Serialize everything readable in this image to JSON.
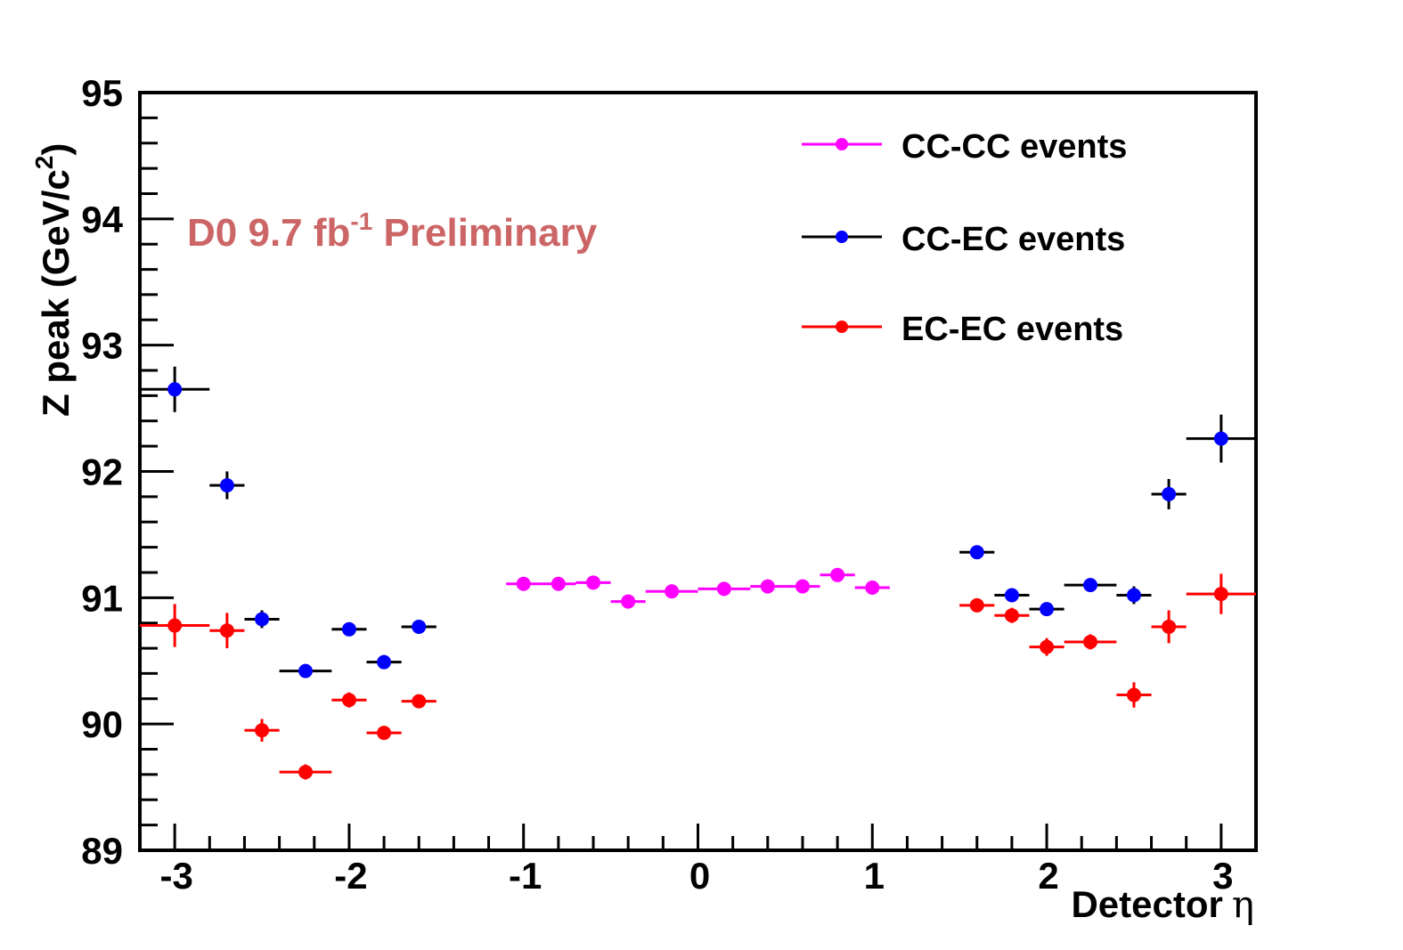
{
  "chart_data": {
    "type": "scatter",
    "title": "",
    "xlabel": {
      "text": "Detector",
      "symbol": "η"
    },
    "ylabel": {
      "text": "Z peak (GeV/c",
      "sup": "2",
      "close": ")"
    },
    "xlim": [
      -3.2,
      3.2
    ],
    "ylim": [
      89,
      95
    ],
    "xticks": [
      -3,
      -2,
      -1,
      0,
      1,
      2,
      3
    ],
    "xtick_labels": [
      "-3",
      "-2",
      "-1",
      "0",
      "1",
      "2",
      "3"
    ],
    "yticks": [
      89,
      90,
      91,
      92,
      93,
      94,
      95
    ],
    "ytick_labels": [
      "89",
      "90",
      "91",
      "92",
      "93",
      "94",
      "95"
    ],
    "grid": false,
    "legend_position": "top-right",
    "annotation": {
      "main": "D0 9.7 fb",
      "sup": "-1",
      "rest": " Preliminary",
      "color": "#cc6666"
    },
    "series": [
      {
        "name": "CC-CC events",
        "color": "#ff00ff",
        "points": [
          {
            "x": -1.0,
            "y": 91.11,
            "xerr": 0.1,
            "yerr": 0.03
          },
          {
            "x": -0.8,
            "y": 91.11,
            "xerr": 0.1,
            "yerr": 0.03
          },
          {
            "x": -0.6,
            "y": 91.12,
            "xerr": 0.1,
            "yerr": 0.03
          },
          {
            "x": -0.4,
            "y": 90.97,
            "xerr": 0.1,
            "yerr": 0.03
          },
          {
            "x": -0.15,
            "y": 91.05,
            "xerr": 0.15,
            "yerr": 0.03
          },
          {
            "x": 0.15,
            "y": 91.07,
            "xerr": 0.15,
            "yerr": 0.03
          },
          {
            "x": 0.4,
            "y": 91.09,
            "xerr": 0.1,
            "yerr": 0.03
          },
          {
            "x": 0.6,
            "y": 91.09,
            "xerr": 0.1,
            "yerr": 0.03
          },
          {
            "x": 0.8,
            "y": 91.18,
            "xerr": 0.1,
            "yerr": 0.03
          },
          {
            "x": 1.0,
            "y": 91.08,
            "xerr": 0.1,
            "yerr": 0.03
          }
        ]
      },
      {
        "name": "CC-EC events",
        "color": "#0000ff",
        "line_color": "#000000",
        "points": [
          {
            "x": -3.0,
            "y": 92.65,
            "xerr": 0.2,
            "yerr": 0.18
          },
          {
            "x": -2.7,
            "y": 91.89,
            "xerr": 0.1,
            "yerr": 0.11
          },
          {
            "x": -2.5,
            "y": 90.83,
            "xerr": 0.1,
            "yerr": 0.07
          },
          {
            "x": -2.25,
            "y": 90.42,
            "xerr": 0.15,
            "yerr": 0.04
          },
          {
            "x": -2.0,
            "y": 90.75,
            "xerr": 0.1,
            "yerr": 0.04
          },
          {
            "x": -1.8,
            "y": 90.49,
            "xerr": 0.1,
            "yerr": 0.04
          },
          {
            "x": -1.6,
            "y": 90.77,
            "xerr": 0.1,
            "yerr": 0.04
          },
          {
            "x": 1.6,
            "y": 91.36,
            "xerr": 0.1,
            "yerr": 0.04
          },
          {
            "x": 1.8,
            "y": 91.02,
            "xerr": 0.1,
            "yerr": 0.04
          },
          {
            "x": 2.0,
            "y": 90.91,
            "xerr": 0.1,
            "yerr": 0.04
          },
          {
            "x": 2.25,
            "y": 91.1,
            "xerr": 0.15,
            "yerr": 0.04
          },
          {
            "x": 2.5,
            "y": 91.02,
            "xerr": 0.1,
            "yerr": 0.07
          },
          {
            "x": 2.7,
            "y": 91.82,
            "xerr": 0.1,
            "yerr": 0.12
          },
          {
            "x": 3.0,
            "y": 92.26,
            "xerr": 0.2,
            "yerr": 0.19
          }
        ]
      },
      {
        "name": "EC-EC events",
        "color": "#ff0000",
        "points": [
          {
            "x": -3.0,
            "y": 90.78,
            "xerr": 0.2,
            "yerr": 0.17
          },
          {
            "x": -2.7,
            "y": 90.74,
            "xerr": 0.1,
            "yerr": 0.14
          },
          {
            "x": -2.5,
            "y": 89.95,
            "xerr": 0.1,
            "yerr": 0.09
          },
          {
            "x": -2.25,
            "y": 89.62,
            "xerr": 0.15,
            "yerr": 0.06
          },
          {
            "x": -2.0,
            "y": 90.19,
            "xerr": 0.1,
            "yerr": 0.06
          },
          {
            "x": -1.8,
            "y": 89.93,
            "xerr": 0.1,
            "yerr": 0.05
          },
          {
            "x": -1.6,
            "y": 90.18,
            "xerr": 0.1,
            "yerr": 0.05
          },
          {
            "x": 1.6,
            "y": 90.94,
            "xerr": 0.1,
            "yerr": 0.05
          },
          {
            "x": 1.8,
            "y": 90.86,
            "xerr": 0.1,
            "yerr": 0.06
          },
          {
            "x": 2.0,
            "y": 90.61,
            "xerr": 0.1,
            "yerr": 0.07
          },
          {
            "x": 2.25,
            "y": 90.65,
            "xerr": 0.15,
            "yerr": 0.06
          },
          {
            "x": 2.5,
            "y": 90.23,
            "xerr": 0.1,
            "yerr": 0.1
          },
          {
            "x": 2.7,
            "y": 90.77,
            "xerr": 0.1,
            "yerr": 0.13
          },
          {
            "x": 3.0,
            "y": 91.03,
            "xerr": 0.2,
            "yerr": 0.16
          }
        ]
      }
    ]
  }
}
